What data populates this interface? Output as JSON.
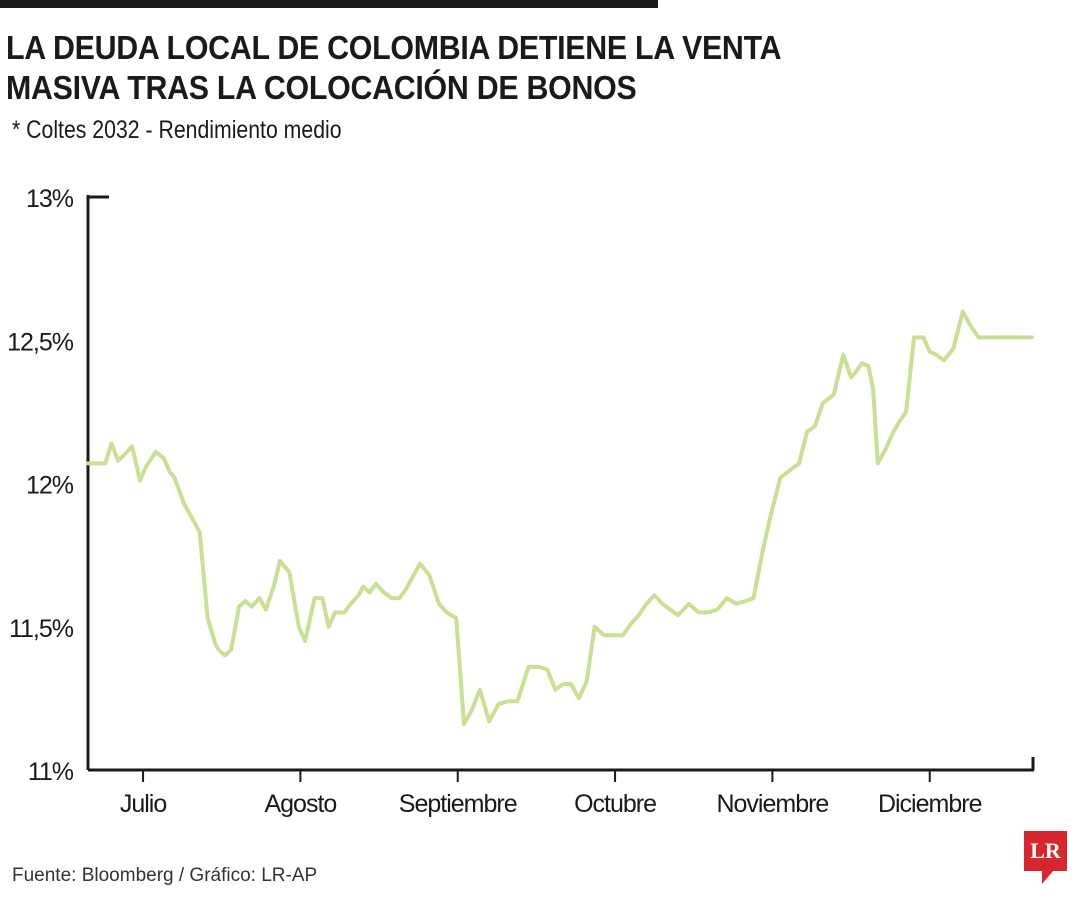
{
  "header": {
    "title_line1": "LA DEUDA LOCAL DE COLOMBIA DETIENE LA VENTA",
    "title_line2": "MASIVA TRAS LA COLOCACIÓN DE BONOS",
    "subtitle": "* Coltes 2032 - Rendimiento medio"
  },
  "footer": {
    "source": "Fuente: Bloomberg / Gráfico: LR-AP",
    "logo": "LR"
  },
  "colors": {
    "line": "#c9df93",
    "axis": "#1a1a1a",
    "logo": "#d7262d"
  },
  "chart_data": {
    "type": "line",
    "title": "LA DEUDA LOCAL DE COLOMBIA DETIENE LA VENTA MASIVA TRAS LA COLOCACIÓN DE BONOS",
    "subtitle": "* Coltes 2032 - Rendimiento medio",
    "xlabel": "",
    "ylabel": "",
    "ylim": [
      11,
      13
    ],
    "xlim": [
      0,
      6.0
    ],
    "yticks": [
      11,
      11.5,
      12,
      12.5,
      13
    ],
    "ytick_labels": [
      "11%",
      "11,5%",
      "12%",
      "12,5%",
      "13%"
    ],
    "xticks": [
      0.35,
      1.35,
      2.35,
      3.35,
      4.35,
      5.35
    ],
    "xtick_labels": [
      "Julio",
      "Agosto",
      "Septiembre",
      "Octubre",
      "Noviembre",
      "Diciembre"
    ],
    "grid": false,
    "legend": "none",
    "series": [
      {
        "x": [
          0.0,
          0.04,
          0.07,
          0.11,
          0.15,
          0.19,
          0.23,
          0.28,
          0.33,
          0.37,
          0.43,
          0.48,
          0.52,
          0.55,
          0.61,
          0.64,
          0.67,
          0.71,
          0.76,
          0.81,
          0.83,
          0.87,
          0.91,
          0.96,
          1.0,
          1.04,
          1.09,
          1.13,
          1.18,
          1.22,
          1.28,
          1.34,
          1.38,
          1.44,
          1.49,
          1.53,
          1.57,
          1.63,
          1.67,
          1.72,
          1.75,
          1.79,
          1.83,
          1.88,
          1.93,
          1.98,
          2.02,
          2.06,
          2.11,
          2.17,
          2.23,
          2.28,
          2.34,
          2.39,
          2.44,
          2.49,
          2.55,
          2.61,
          2.67,
          2.73,
          2.8,
          2.87,
          2.92,
          2.97,
          3.02,
          3.07,
          3.12,
          3.17,
          3.22,
          3.28,
          3.34,
          3.4,
          3.45,
          3.5,
          3.55,
          3.6,
          3.65,
          3.7,
          3.75,
          3.82,
          3.88,
          3.94,
          4.0,
          4.06,
          4.12,
          4.18,
          4.23,
          4.29,
          4.34,
          4.4,
          4.47,
          4.52,
          4.57,
          4.62,
          4.67,
          4.74,
          4.8,
          4.85,
          4.88,
          4.92,
          4.96,
          4.99,
          5.02,
          5.07,
          5.11,
          5.15,
          5.2,
          5.25,
          5.31,
          5.35,
          5.39,
          5.44,
          5.5,
          5.56,
          5.61,
          5.66,
          5.72,
          5.77,
          5.83,
          5.87,
          5.91,
          5.94,
          5.96,
          6.0
        ],
        "values": [
          12.07,
          12.07,
          12.07,
          12.07,
          12.14,
          12.08,
          12.1,
          12.13,
          12.01,
          12.06,
          12.11,
          12.09,
          12.04,
          12.02,
          11.93,
          11.9,
          11.87,
          11.83,
          11.53,
          11.44,
          11.42,
          11.4,
          11.42,
          11.57,
          11.59,
          11.57,
          11.6,
          11.56,
          11.64,
          11.73,
          11.69,
          11.5,
          11.45,
          11.6,
          11.6,
          11.5,
          11.55,
          11.55,
          11.58,
          11.61,
          11.64,
          11.62,
          11.65,
          11.62,
          11.6,
          11.6,
          11.63,
          11.67,
          11.72,
          11.68,
          11.58,
          11.55,
          11.53,
          11.16,
          11.21,
          11.28,
          11.17,
          11.23,
          11.24,
          11.24,
          11.36,
          11.36,
          11.35,
          11.28,
          11.3,
          11.3,
          11.25,
          11.31,
          11.5,
          11.47,
          11.47,
          11.47,
          11.51,
          11.54,
          11.58,
          11.61,
          11.58,
          11.56,
          11.54,
          11.58,
          11.55,
          11.55,
          11.56,
          11.6,
          11.58,
          11.59,
          11.6,
          11.77,
          11.89,
          12.02,
          12.05,
          12.07,
          12.18,
          12.2,
          12.28,
          12.31,
          12.45,
          12.37,
          12.39,
          12.42,
          12.41,
          12.33,
          12.07,
          12.12,
          12.17,
          12.21,
          12.25,
          12.51,
          12.51,
          12.46,
          12.45,
          12.43,
          12.47,
          12.6,
          12.55,
          12.51,
          12.51,
          12.51,
          12.51,
          12.51,
          12.51,
          12.51,
          12.51,
          12.51
        ]
      }
    ]
  }
}
